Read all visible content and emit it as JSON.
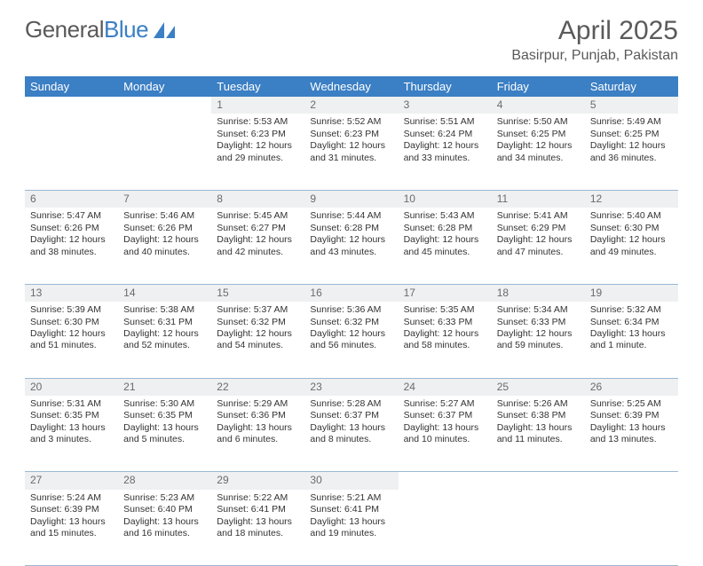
{
  "branding": {
    "logo_text_a": "General",
    "logo_text_b": "Blue",
    "logo_color_a": "#5a5a5a",
    "logo_color_b": "#3b7fc4",
    "sail_color": "#3b7fc4"
  },
  "title": {
    "month": "April 2025",
    "location": "Basirpur, Punjab, Pakistan",
    "title_fontsize": 30,
    "location_fontsize": 16
  },
  "styling": {
    "header_bg": "#3b7fc4",
    "header_text": "#ffffff",
    "daynum_bg": "#eef0f1",
    "daynum_text": "#6b6b6b",
    "cell_border": "#9bb8d3",
    "body_fontsize": 10.5,
    "page_bg": "#ffffff"
  },
  "weekdays": [
    "Sunday",
    "Monday",
    "Tuesday",
    "Wednesday",
    "Thursday",
    "Friday",
    "Saturday"
  ],
  "weeks": [
    {
      "days": [
        null,
        null,
        {
          "n": "1",
          "sunrise": "Sunrise: 5:53 AM",
          "sunset": "Sunset: 6:23 PM",
          "daylight": "Daylight: 12 hours and 29 minutes."
        },
        {
          "n": "2",
          "sunrise": "Sunrise: 5:52 AM",
          "sunset": "Sunset: 6:23 PM",
          "daylight": "Daylight: 12 hours and 31 minutes."
        },
        {
          "n": "3",
          "sunrise": "Sunrise: 5:51 AM",
          "sunset": "Sunset: 6:24 PM",
          "daylight": "Daylight: 12 hours and 33 minutes."
        },
        {
          "n": "4",
          "sunrise": "Sunrise: 5:50 AM",
          "sunset": "Sunset: 6:25 PM",
          "daylight": "Daylight: 12 hours and 34 minutes."
        },
        {
          "n": "5",
          "sunrise": "Sunrise: 5:49 AM",
          "sunset": "Sunset: 6:25 PM",
          "daylight": "Daylight: 12 hours and 36 minutes."
        }
      ]
    },
    {
      "days": [
        {
          "n": "6",
          "sunrise": "Sunrise: 5:47 AM",
          "sunset": "Sunset: 6:26 PM",
          "daylight": "Daylight: 12 hours and 38 minutes."
        },
        {
          "n": "7",
          "sunrise": "Sunrise: 5:46 AM",
          "sunset": "Sunset: 6:26 PM",
          "daylight": "Daylight: 12 hours and 40 minutes."
        },
        {
          "n": "8",
          "sunrise": "Sunrise: 5:45 AM",
          "sunset": "Sunset: 6:27 PM",
          "daylight": "Daylight: 12 hours and 42 minutes."
        },
        {
          "n": "9",
          "sunrise": "Sunrise: 5:44 AM",
          "sunset": "Sunset: 6:28 PM",
          "daylight": "Daylight: 12 hours and 43 minutes."
        },
        {
          "n": "10",
          "sunrise": "Sunrise: 5:43 AM",
          "sunset": "Sunset: 6:28 PM",
          "daylight": "Daylight: 12 hours and 45 minutes."
        },
        {
          "n": "11",
          "sunrise": "Sunrise: 5:41 AM",
          "sunset": "Sunset: 6:29 PM",
          "daylight": "Daylight: 12 hours and 47 minutes."
        },
        {
          "n": "12",
          "sunrise": "Sunrise: 5:40 AM",
          "sunset": "Sunset: 6:30 PM",
          "daylight": "Daylight: 12 hours and 49 minutes."
        }
      ]
    },
    {
      "days": [
        {
          "n": "13",
          "sunrise": "Sunrise: 5:39 AM",
          "sunset": "Sunset: 6:30 PM",
          "daylight": "Daylight: 12 hours and 51 minutes."
        },
        {
          "n": "14",
          "sunrise": "Sunrise: 5:38 AM",
          "sunset": "Sunset: 6:31 PM",
          "daylight": "Daylight: 12 hours and 52 minutes."
        },
        {
          "n": "15",
          "sunrise": "Sunrise: 5:37 AM",
          "sunset": "Sunset: 6:32 PM",
          "daylight": "Daylight: 12 hours and 54 minutes."
        },
        {
          "n": "16",
          "sunrise": "Sunrise: 5:36 AM",
          "sunset": "Sunset: 6:32 PM",
          "daylight": "Daylight: 12 hours and 56 minutes."
        },
        {
          "n": "17",
          "sunrise": "Sunrise: 5:35 AM",
          "sunset": "Sunset: 6:33 PM",
          "daylight": "Daylight: 12 hours and 58 minutes."
        },
        {
          "n": "18",
          "sunrise": "Sunrise: 5:34 AM",
          "sunset": "Sunset: 6:33 PM",
          "daylight": "Daylight: 12 hours and 59 minutes."
        },
        {
          "n": "19",
          "sunrise": "Sunrise: 5:32 AM",
          "sunset": "Sunset: 6:34 PM",
          "daylight": "Daylight: 13 hours and 1 minute."
        }
      ]
    },
    {
      "days": [
        {
          "n": "20",
          "sunrise": "Sunrise: 5:31 AM",
          "sunset": "Sunset: 6:35 PM",
          "daylight": "Daylight: 13 hours and 3 minutes."
        },
        {
          "n": "21",
          "sunrise": "Sunrise: 5:30 AM",
          "sunset": "Sunset: 6:35 PM",
          "daylight": "Daylight: 13 hours and 5 minutes."
        },
        {
          "n": "22",
          "sunrise": "Sunrise: 5:29 AM",
          "sunset": "Sunset: 6:36 PM",
          "daylight": "Daylight: 13 hours and 6 minutes."
        },
        {
          "n": "23",
          "sunrise": "Sunrise: 5:28 AM",
          "sunset": "Sunset: 6:37 PM",
          "daylight": "Daylight: 13 hours and 8 minutes."
        },
        {
          "n": "24",
          "sunrise": "Sunrise: 5:27 AM",
          "sunset": "Sunset: 6:37 PM",
          "daylight": "Daylight: 13 hours and 10 minutes."
        },
        {
          "n": "25",
          "sunrise": "Sunrise: 5:26 AM",
          "sunset": "Sunset: 6:38 PM",
          "daylight": "Daylight: 13 hours and 11 minutes."
        },
        {
          "n": "26",
          "sunrise": "Sunrise: 5:25 AM",
          "sunset": "Sunset: 6:39 PM",
          "daylight": "Daylight: 13 hours and 13 minutes."
        }
      ]
    },
    {
      "days": [
        {
          "n": "27",
          "sunrise": "Sunrise: 5:24 AM",
          "sunset": "Sunset: 6:39 PM",
          "daylight": "Daylight: 13 hours and 15 minutes."
        },
        {
          "n": "28",
          "sunrise": "Sunrise: 5:23 AM",
          "sunset": "Sunset: 6:40 PM",
          "daylight": "Daylight: 13 hours and 16 minutes."
        },
        {
          "n": "29",
          "sunrise": "Sunrise: 5:22 AM",
          "sunset": "Sunset: 6:41 PM",
          "daylight": "Daylight: 13 hours and 18 minutes."
        },
        {
          "n": "30",
          "sunrise": "Sunrise: 5:21 AM",
          "sunset": "Sunset: 6:41 PM",
          "daylight": "Daylight: 13 hours and 19 minutes."
        },
        null,
        null,
        null
      ]
    }
  ]
}
